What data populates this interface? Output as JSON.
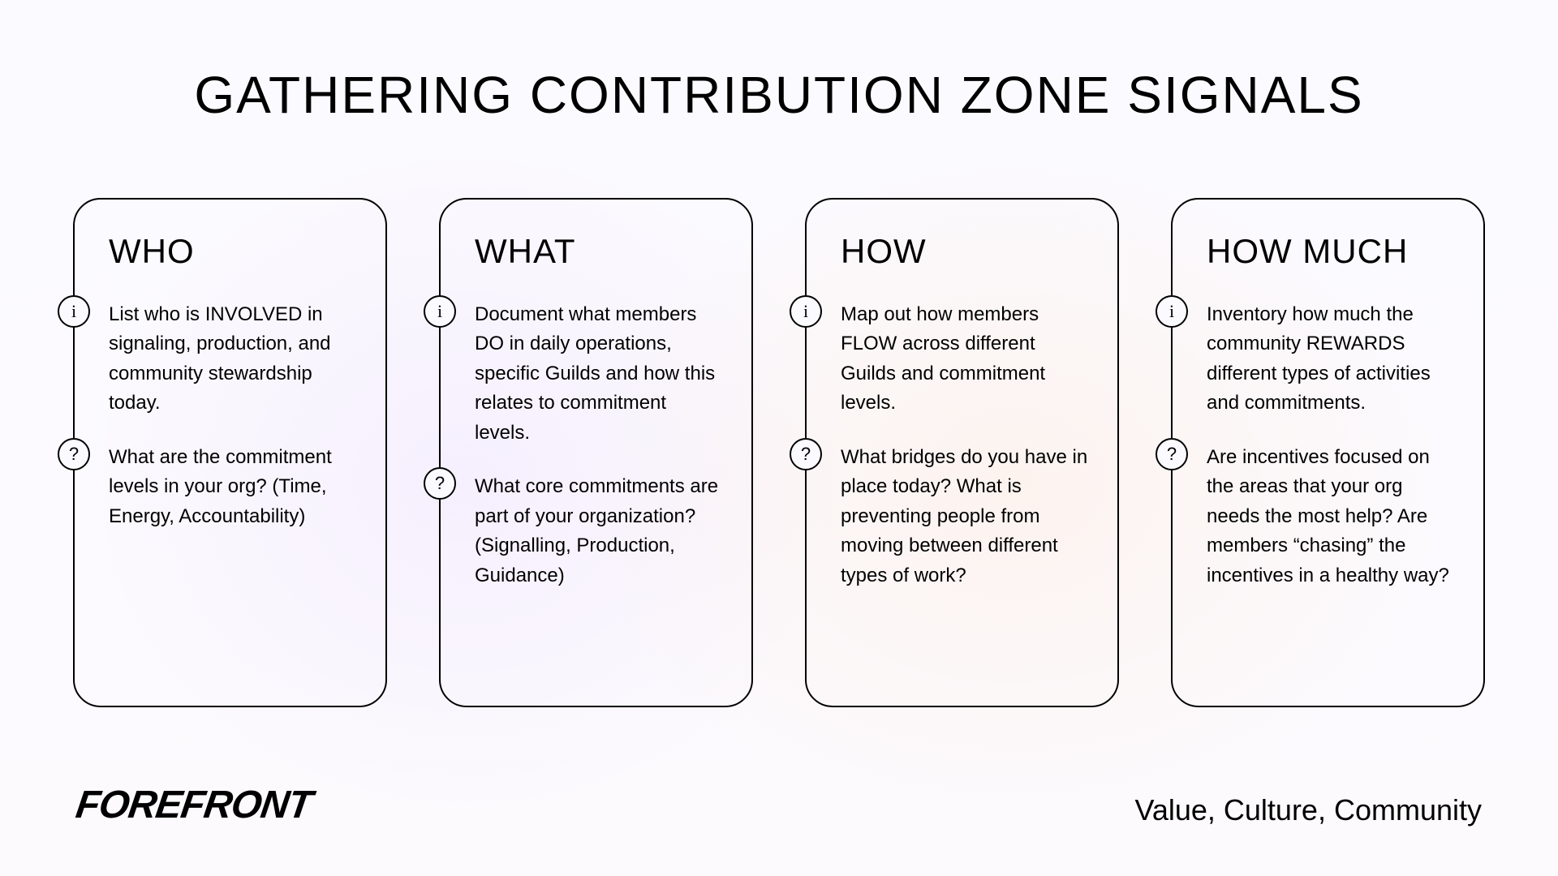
{
  "title": "GATHERING CONTRIBUTION ZONE SIGNALS",
  "cards": [
    {
      "title": "WHO",
      "info": "List who is INVOLVED in signaling, production, and community stewardship today.",
      "question": "What are the commitment levels in your org? (Time, Energy, Accountability)"
    },
    {
      "title": "WHAT",
      "info": "Document what members DO in daily operations, specific Guilds and how this relates to commitment levels.",
      "question": "What core commitments are part of your organization? (Signalling, Production, Guidance)"
    },
    {
      "title": "HOW",
      "info": "Map out how members FLOW across different Guilds and commitment levels.",
      "question": "What bridges do you have in place today? What is preventing people from moving between different types of work?"
    },
    {
      "title": "HOW MUCH",
      "info": "Inventory how much the community REWARDS different types of activities and commitments.",
      "question": "Are incentives focused on the areas that your org needs the most help? Are members “chasing” the incentives in a healthy way?"
    }
  ],
  "brand": "FOREFRONT",
  "tagline": "Value, Culture, Community",
  "style": {
    "type": "infographic",
    "card_border_color": "#000000",
    "card_border_width": 2.5,
    "card_border_radius": 34,
    "badge_border_color": "#000000",
    "badge_diameter": 40,
    "title_fontsize": 64,
    "card_title_fontsize": 42,
    "body_fontsize": 24,
    "brand_fontsize": 48,
    "tagline_fontsize": 36,
    "background_gradient_stops": [
      "#fbfaff",
      "#fcfafd"
    ],
    "accent_gradient_a": "rgba(255,230,210,0.35)",
    "accent_gradient_b": "rgba(235,220,255,0.35)",
    "text_color": "#000000"
  }
}
